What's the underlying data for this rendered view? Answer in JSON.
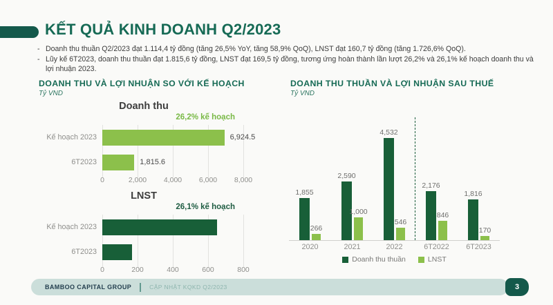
{
  "slide": {
    "title": "KẾT QUẢ KINH DOANH Q2/2023",
    "bullet_marker": "-",
    "bullets": [
      "Doanh thu thuần Q2/2023 đạt 1.114,4 tỷ đồng (tăng 26,5% YoY, tăng 58,9% QoQ), LNST đạt 160,7 tỷ đồng (tăng 1.726,6% QoQ).",
      "Lũy kế 6T2023, doanh thu thuần đạt 1.815,6 tỷ đồng, LNST đạt 169,5 tỷ đồng, tương ứng hoàn thành lần lượt 26,2% và 26,1% kế hoạch doanh thu và lợi nhuận 2023."
    ]
  },
  "left_section": {
    "title": "DOANH THU VÀ LỢI NHUẬN SO VỚI KẾ HOẠCH",
    "unit": "Tỷ VND"
  },
  "right_section": {
    "title": "DOANH THU THUẦN VÀ LỢI NHUẬN SAU THUẾ",
    "unit": "Tỷ VND"
  },
  "footer": {
    "brand": "BAMBOO CAPITAL GROUP",
    "caption": "CẬP NHẬT KQKD Q2/2023",
    "page": "3"
  },
  "colors": {
    "dark_green": "#185F38",
    "light_green": "#8CC04B",
    "teal_accent": "#14594B",
    "header_green": "#166A55",
    "annot_light": "#79B946",
    "annot_dark": "#1E5C42"
  },
  "chart_data": [
    {
      "type": "bar",
      "orientation": "horizontal",
      "title": "Doanh thu",
      "annotation": "26,2% kế hoạch",
      "annotation_color": "#79B946",
      "categories": [
        "Kế hoạch 2023",
        "6T2023"
      ],
      "values": [
        6924.5,
        1815.6
      ],
      "value_labels": [
        "6,924.5",
        "1,815.6"
      ],
      "bar_color": "#8CC04B",
      "xlim": [
        0,
        8000
      ],
      "xticks": [
        "0",
        "2,000",
        "4,000",
        "6,000",
        "8,000"
      ],
      "unit": "Tỷ VND",
      "grid": true
    },
    {
      "type": "bar",
      "orientation": "horizontal",
      "title": "LNST",
      "annotation": "26,1% kế hoạch",
      "annotation_color": "#1E5C42",
      "categories": [
        "Kế hoạch 2023",
        "6T2023"
      ],
      "values": [
        650,
        169.5
      ],
      "value_labels": [
        "",
        ""
      ],
      "bar_color": "#185F38",
      "xlim": [
        0,
        800
      ],
      "xticks": [
        "0",
        "200",
        "400",
        "600",
        "800"
      ],
      "unit": "Tỷ VND",
      "grid": true
    },
    {
      "type": "bar",
      "orientation": "vertical",
      "title": "DOANH THU THUẦN VÀ LỢI NHUẬN SAU THUẾ",
      "unit": "Tỷ VND",
      "categories": [
        "2020",
        "2021",
        "2022",
        "6T2022",
        "6T2023"
      ],
      "series": [
        {
          "name": "Doanh thu thuần",
          "color": "#185F38",
          "values": [
            1855,
            2590,
            4532,
            2176,
            1816
          ],
          "value_labels": [
            "1,855",
            "2,590",
            "4,532",
            "2,176",
            "1,816"
          ]
        },
        {
          "name": "LNST",
          "color": "#8CC04B",
          "values": [
            266,
            1000,
            546,
            846,
            170
          ],
          "value_labels": [
            "266",
            "1,000",
            "546",
            "846",
            "170"
          ]
        }
      ],
      "ylim": [
        0,
        4800
      ],
      "separator_after_index": 2,
      "legend_position": "bottom",
      "grid": false
    }
  ]
}
